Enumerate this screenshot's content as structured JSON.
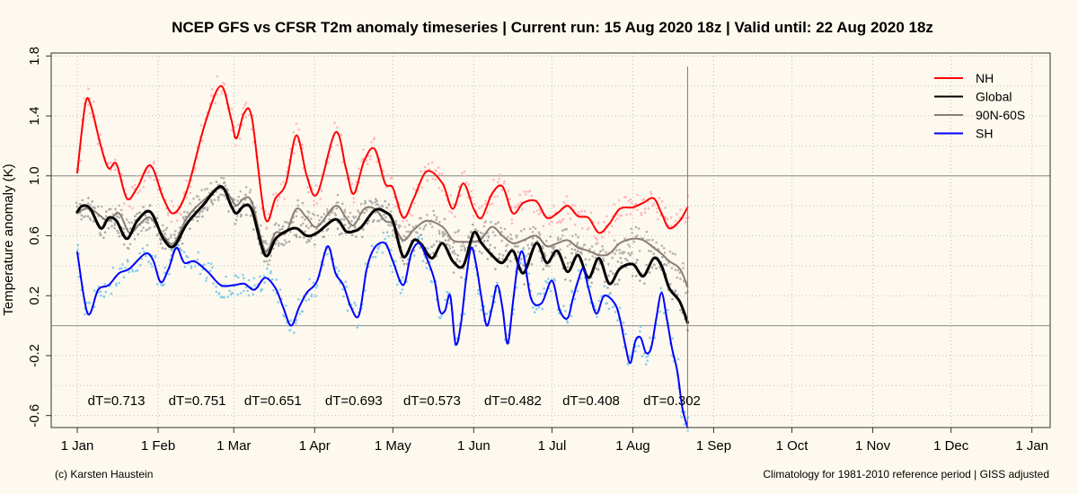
{
  "chart_data": {
    "type": "line",
    "title": "NCEP GFS vs CFSR T2m anomaly timeseries | Current run: 15 Aug 2020 18z | Valid until: 22 Aug 2020 18z",
    "ylabel": "Temperature anomaly (K)",
    "xlabel": "",
    "ylim": [
      -0.68,
      1.82
    ],
    "xlim": [
      -10,
      373
    ],
    "y_ticks": [
      -0.6,
      -0.2,
      0.2,
      0.6,
      1.0,
      1.4,
      1.8
    ],
    "y_tick_labels": [
      "-0.6",
      "-0.2",
      "0.2",
      "0.6",
      "1.0",
      "1.4",
      "1.8"
    ],
    "x_ticks": [
      0,
      31,
      60,
      91,
      121,
      152,
      182,
      213,
      244,
      274,
      305,
      335,
      366
    ],
    "x_tick_labels": [
      "1 Jan",
      "1 Feb",
      "1 Mar",
      "1 Apr",
      "1 May",
      "1 Jun",
      "1 Jul",
      "1 Aug",
      "1 Sep",
      "1 Oct",
      "1 Nov",
      "1 Dec",
      "1 Jan"
    ],
    "grid": true,
    "reference_lines": [
      1.0,
      0.0
    ],
    "current_run_day": 234,
    "legend": {
      "position": "top-right",
      "entries": [
        {
          "label": "NH",
          "color": "#ff0000"
        },
        {
          "label": "Global",
          "color": "#000000"
        },
        {
          "label": "90N-60S",
          "color": "#8b7d73"
        },
        {
          "label": "SH",
          "color": "#0000ff"
        }
      ]
    },
    "series": [
      {
        "name": "NH",
        "color": "#ff0000",
        "dot_color": "#ffb6c1",
        "width": 2,
        "points": [
          [
            0,
            1.02
          ],
          [
            3,
            1.47
          ],
          [
            5,
            1.48
          ],
          [
            9,
            1.2
          ],
          [
            12,
            1.05
          ],
          [
            15,
            1.08
          ],
          [
            19,
            0.85
          ],
          [
            23,
            0.92
          ],
          [
            28,
            1.07
          ],
          [
            33,
            0.85
          ],
          [
            37,
            0.75
          ],
          [
            42,
            0.9
          ],
          [
            49,
            1.35
          ],
          [
            55,
            1.6
          ],
          [
            59,
            1.38
          ],
          [
            61,
            1.25
          ],
          [
            64,
            1.42
          ],
          [
            67,
            1.38
          ],
          [
            72,
            0.72
          ],
          [
            76,
            0.85
          ],
          [
            80,
            0.95
          ],
          [
            84,
            1.27
          ],
          [
            88,
            1.0
          ],
          [
            92,
            0.88
          ],
          [
            99,
            1.29
          ],
          [
            103,
            1.05
          ],
          [
            106,
            0.88
          ],
          [
            110,
            1.1
          ],
          [
            114,
            1.18
          ],
          [
            118,
            0.95
          ],
          [
            121,
            0.92
          ],
          [
            125,
            0.72
          ],
          [
            129,
            0.85
          ],
          [
            134,
            1.03
          ],
          [
            140,
            0.95
          ],
          [
            144,
            0.78
          ],
          [
            148,
            0.95
          ],
          [
            152,
            0.78
          ],
          [
            155,
            0.72
          ],
          [
            159,
            0.88
          ],
          [
            163,
            0.93
          ],
          [
            167,
            0.75
          ],
          [
            171,
            0.82
          ],
          [
            176,
            0.83
          ],
          [
            180,
            0.72
          ],
          [
            184,
            0.75
          ],
          [
            188,
            0.8
          ],
          [
            192,
            0.73
          ],
          [
            196,
            0.72
          ],
          [
            200,
            0.62
          ],
          [
            204,
            0.68
          ],
          [
            208,
            0.78
          ],
          [
            213,
            0.79
          ],
          [
            217,
            0.82
          ],
          [
            221,
            0.85
          ],
          [
            224,
            0.75
          ],
          [
            227,
            0.65
          ],
          [
            231,
            0.7
          ],
          [
            234,
            0.79
          ]
        ]
      },
      {
        "name": "90N-60S",
        "color": "#8b7d73",
        "dot_color": "#b4b4b4",
        "width": 2,
        "points": [
          [
            0,
            0.75
          ],
          [
            3,
            0.78
          ],
          [
            6,
            0.77
          ],
          [
            9,
            0.73
          ],
          [
            12,
            0.7
          ],
          [
            16,
            0.75
          ],
          [
            20,
            0.62
          ],
          [
            24,
            0.68
          ],
          [
            28,
            0.72
          ],
          [
            33,
            0.6
          ],
          [
            37,
            0.55
          ],
          [
            42,
            0.72
          ],
          [
            48,
            0.83
          ],
          [
            55,
            0.92
          ],
          [
            59,
            0.85
          ],
          [
            61,
            0.8
          ],
          [
            64,
            0.85
          ],
          [
            67,
            0.82
          ],
          [
            72,
            0.5
          ],
          [
            76,
            0.62
          ],
          [
            80,
            0.62
          ],
          [
            84,
            0.78
          ],
          [
            88,
            0.72
          ],
          [
            92,
            0.66
          ],
          [
            99,
            0.8
          ],
          [
            103,
            0.72
          ],
          [
            106,
            0.67
          ],
          [
            110,
            0.78
          ],
          [
            114,
            0.78
          ],
          [
            118,
            0.7
          ],
          [
            121,
            0.68
          ],
          [
            125,
            0.57
          ],
          [
            129,
            0.64
          ],
          [
            134,
            0.7
          ],
          [
            140,
            0.66
          ],
          [
            144,
            0.57
          ],
          [
            148,
            0.56
          ],
          [
            152,
            0.56
          ],
          [
            155,
            0.58
          ],
          [
            159,
            0.66
          ],
          [
            163,
            0.6
          ],
          [
            167,
            0.55
          ],
          [
            171,
            0.57
          ],
          [
            176,
            0.6
          ],
          [
            180,
            0.53
          ],
          [
            184,
            0.55
          ],
          [
            188,
            0.57
          ],
          [
            192,
            0.52
          ],
          [
            196,
            0.5
          ],
          [
            200,
            0.47
          ],
          [
            204,
            0.48
          ],
          [
            208,
            0.55
          ],
          [
            213,
            0.58
          ],
          [
            217,
            0.57
          ],
          [
            221,
            0.52
          ],
          [
            224,
            0.48
          ],
          [
            227,
            0.43
          ],
          [
            231,
            0.38
          ],
          [
            234,
            0.26
          ]
        ]
      },
      {
        "name": "Global",
        "color": "#000000",
        "dot_color": "#a9a9a9",
        "width": 3,
        "points": [
          [
            0,
            0.76
          ],
          [
            2,
            0.8
          ],
          [
            5,
            0.78
          ],
          [
            9,
            0.65
          ],
          [
            12,
            0.72
          ],
          [
            15,
            0.7
          ],
          [
            19,
            0.58
          ],
          [
            23,
            0.7
          ],
          [
            28,
            0.76
          ],
          [
            33,
            0.58
          ],
          [
            37,
            0.53
          ],
          [
            42,
            0.68
          ],
          [
            48,
            0.8
          ],
          [
            55,
            0.93
          ],
          [
            59,
            0.8
          ],
          [
            61,
            0.75
          ],
          [
            64,
            0.8
          ],
          [
            67,
            0.77
          ],
          [
            72,
            0.47
          ],
          [
            76,
            0.58
          ],
          [
            80,
            0.63
          ],
          [
            84,
            0.65
          ],
          [
            88,
            0.6
          ],
          [
            92,
            0.62
          ],
          [
            99,
            0.71
          ],
          [
            103,
            0.63
          ],
          [
            106,
            0.63
          ],
          [
            109,
            0.66
          ],
          [
            114,
            0.77
          ],
          [
            118,
            0.76
          ],
          [
            121,
            0.7
          ],
          [
            125,
            0.46
          ],
          [
            129,
            0.57
          ],
          [
            132,
            0.54
          ],
          [
            136,
            0.45
          ],
          [
            140,
            0.55
          ],
          [
            144,
            0.43
          ],
          [
            148,
            0.4
          ],
          [
            152,
            0.62
          ],
          [
            155,
            0.55
          ],
          [
            159,
            0.47
          ],
          [
            163,
            0.42
          ],
          [
            167,
            0.5
          ],
          [
            171,
            0.35
          ],
          [
            176,
            0.55
          ],
          [
            180,
            0.42
          ],
          [
            184,
            0.5
          ],
          [
            188,
            0.36
          ],
          [
            192,
            0.47
          ],
          [
            196,
            0.32
          ],
          [
            200,
            0.45
          ],
          [
            204,
            0.28
          ],
          [
            208,
            0.38
          ],
          [
            213,
            0.41
          ],
          [
            217,
            0.33
          ],
          [
            221,
            0.45
          ],
          [
            224,
            0.4
          ],
          [
            227,
            0.25
          ],
          [
            231,
            0.16
          ],
          [
            234,
            0.02
          ]
        ]
      },
      {
        "name": "SH",
        "color": "#0000ff",
        "dot_color": "#87ceeb",
        "width": 2,
        "points": [
          [
            0,
            0.49
          ],
          [
            4,
            0.08
          ],
          [
            8,
            0.24
          ],
          [
            12,
            0.27
          ],
          [
            16,
            0.35
          ],
          [
            20,
            0.38
          ],
          [
            26,
            0.48
          ],
          [
            29,
            0.44
          ],
          [
            32,
            0.29
          ],
          [
            35,
            0.38
          ],
          [
            38,
            0.52
          ],
          [
            41,
            0.42
          ],
          [
            45,
            0.43
          ],
          [
            50,
            0.36
          ],
          [
            55,
            0.27
          ],
          [
            60,
            0.27
          ],
          [
            64,
            0.28
          ],
          [
            68,
            0.24
          ],
          [
            72,
            0.32
          ],
          [
            76,
            0.25
          ],
          [
            79,
            0.12
          ],
          [
            82,
            0.0
          ],
          [
            85,
            0.12
          ],
          [
            88,
            0.22
          ],
          [
            92,
            0.3
          ],
          [
            96,
            0.53
          ],
          [
            99,
            0.35
          ],
          [
            102,
            0.27
          ],
          [
            105,
            0.12
          ],
          [
            108,
            0.07
          ],
          [
            111,
            0.38
          ],
          [
            114,
            0.52
          ],
          [
            118,
            0.55
          ],
          [
            121,
            0.43
          ],
          [
            125,
            0.27
          ],
          [
            128,
            0.48
          ],
          [
            131,
            0.55
          ],
          [
            134,
            0.45
          ],
          [
            137,
            0.3
          ],
          [
            139,
            0.1
          ],
          [
            141,
            0.1
          ],
          [
            143,
            0.2
          ],
          [
            145,
            -0.12
          ],
          [
            147,
            0.0
          ],
          [
            149,
            0.3
          ],
          [
            151,
            0.52
          ],
          [
            153,
            0.4
          ],
          [
            155,
            0.18
          ],
          [
            157,
            0.0
          ],
          [
            159,
            0.12
          ],
          [
            161,
            0.27
          ],
          [
            163,
            0.12
          ],
          [
            165,
            -0.12
          ],
          [
            167,
            0.15
          ],
          [
            169,
            0.42
          ],
          [
            171,
            0.48
          ],
          [
            174,
            0.18
          ],
          [
            178,
            0.15
          ],
          [
            182,
            0.3
          ],
          [
            185,
            0.1
          ],
          [
            188,
            0.05
          ],
          [
            190,
            0.18
          ],
          [
            192,
            0.3
          ],
          [
            194,
            0.38
          ],
          [
            196,
            0.25
          ],
          [
            199,
            0.08
          ],
          [
            202,
            0.2
          ],
          [
            206,
            0.15
          ],
          [
            208,
            0.05
          ],
          [
            210,
            -0.12
          ],
          [
            212,
            -0.25
          ],
          [
            214,
            -0.1
          ],
          [
            216,
            -0.08
          ],
          [
            218,
            -0.18
          ],
          [
            220,
            -0.15
          ],
          [
            222,
            0.05
          ],
          [
            224,
            0.22
          ],
          [
            226,
            0.05
          ],
          [
            228,
            -0.15
          ],
          [
            230,
            -0.3
          ],
          [
            232,
            -0.55
          ],
          [
            234,
            -0.68
          ]
        ]
      }
    ],
    "annotations": [
      {
        "text": "dT=0.713",
        "day": 15
      },
      {
        "text": "dT=0.751",
        "day": 46
      },
      {
        "text": "dT=0.651",
        "day": 75
      },
      {
        "text": "dT=0.693",
        "day": 106
      },
      {
        "text": "dT=0.573",
        "day": 136
      },
      {
        "text": "dT=0.482",
        "day": 167
      },
      {
        "text": "dT=0.408",
        "day": 197
      },
      {
        "text": "dT=0.302",
        "day": 228
      }
    ],
    "annotation_y": -0.5
  },
  "footer": {
    "left": "(c) Karsten Haustein",
    "right": "Climatology for 1981-2010 reference period | GISS adjusted"
  }
}
